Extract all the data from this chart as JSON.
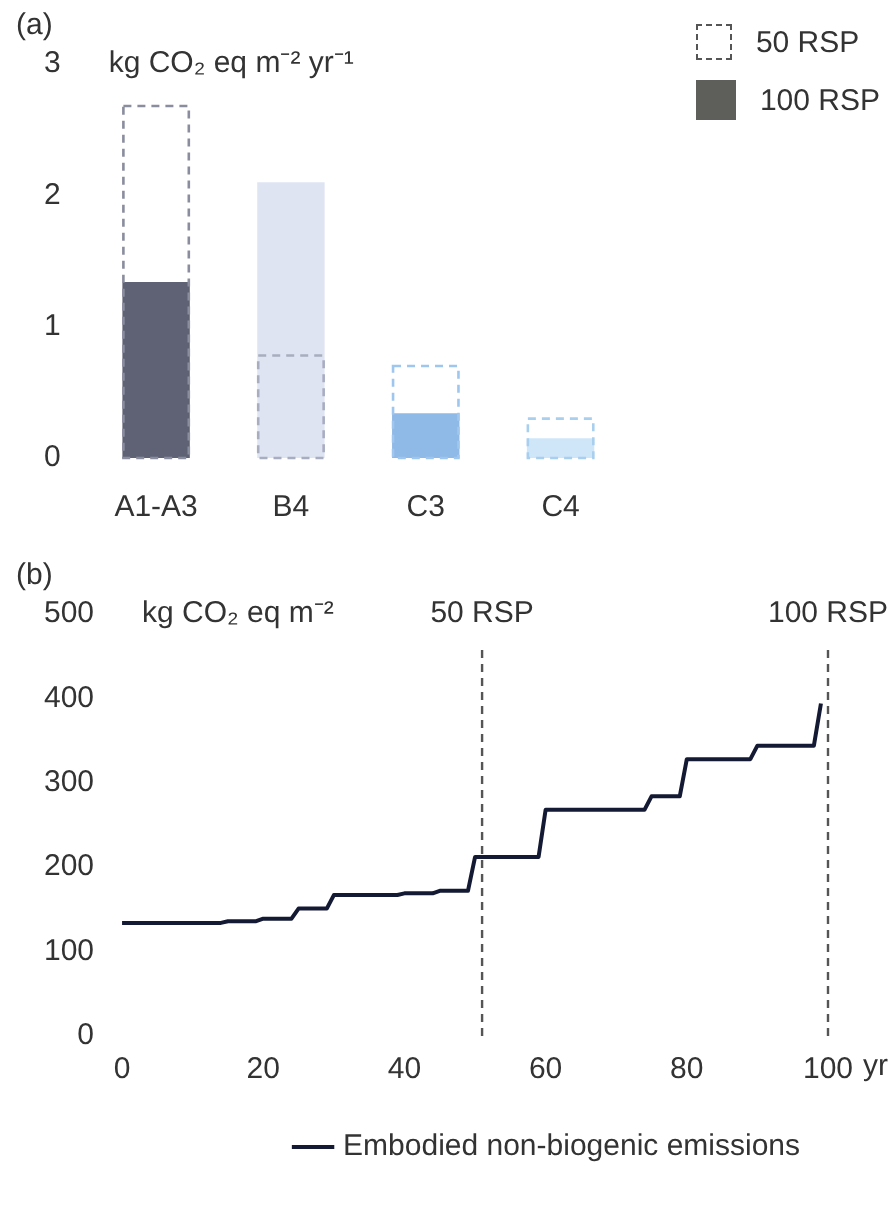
{
  "chart_data": [
    {
      "type": "bar",
      "title": "(a)",
      "ylabel": "kg CO₂ eq m⁻² yr⁻¹",
      "categories": [
        "A1-A3",
        "B4",
        "C3",
        "C4"
      ],
      "series": [
        {
          "name": "100 RSP",
          "color": "#5e5e5a",
          "colors": [
            "#5f6275",
            "#dfe4f3",
            "#8fb9e6",
            "#cfe6f9"
          ],
          "values": [
            1.34,
            2.1,
            0.34,
            0.15
          ]
        },
        {
          "name": "50 RSP",
          "color": "#555555",
          "colors": [
            "#8a8d9e",
            "#a9adc0",
            "#9fc6ee",
            "#a9cfef"
          ],
          "line_style": "dashed",
          "values": [
            2.68,
            0.78,
            0.7,
            0.3
          ]
        }
      ],
      "ylim": [
        0,
        3
      ],
      "yticks": [
        0,
        1,
        2,
        3
      ],
      "grid": false,
      "legend": "top right"
    },
    {
      "type": "line",
      "title": "(b)",
      "ylabel": "kg CO₂ eq m⁻²",
      "xlabel": "yr",
      "x": [
        0,
        14,
        15,
        19,
        20,
        24,
        25,
        29,
        30,
        39,
        40,
        44,
        45,
        49,
        50,
        59,
        60,
        74,
        75,
        79,
        80,
        89,
        90,
        98,
        99
      ],
      "series": [
        {
          "name": "Embodied non-biogenic emissions",
          "color": "#141a33",
          "values": [
            134,
            134,
            136,
            136,
            139,
            139,
            151,
            151,
            167,
            167,
            169,
            169,
            172,
            172,
            212,
            212,
            268,
            268,
            284,
            284,
            328,
            328,
            344,
            344,
            394
          ]
        }
      ],
      "xlim": [
        0,
        100
      ],
      "xticks": [
        0,
        20,
        40,
        60,
        80,
        100
      ],
      "ylim": [
        0,
        500
      ],
      "yticks": [
        0,
        100,
        200,
        300,
        400,
        500
      ],
      "ref_lines": [
        {
          "axis": "x",
          "value": 51,
          "label": "50 RSP",
          "line_style": "dashed"
        },
        {
          "axis": "x",
          "value": 100,
          "label": "100 RSP",
          "line_style": "dashed"
        }
      ],
      "grid": false,
      "legend": "bottom",
      "marker": "none"
    }
  ]
}
